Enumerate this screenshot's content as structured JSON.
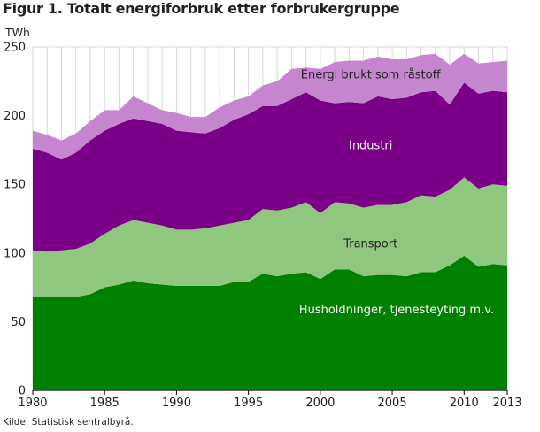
{
  "title": "Figur 1. Totalt energiforbruk etter forbrukergruppe",
  "source": "Kilde: Statistisk sentralbyrå.",
  "chart_data": {
    "type": "area",
    "stacked": true,
    "title": "Figur 1. Totalt energiforbruk etter forbrukergruppe",
    "ylabel": "TWh",
    "xlabel": "",
    "ylim": [
      0,
      250
    ],
    "xlim": [
      1980,
      2013
    ],
    "yticks": [
      0,
      50,
      100,
      150,
      200,
      250
    ],
    "xticks": [
      1980,
      1985,
      1990,
      1995,
      2000,
      2005,
      2010,
      2013
    ],
    "grid": "vertical",
    "x": [
      1980,
      1981,
      1982,
      1983,
      1984,
      1985,
      1986,
      1987,
      1988,
      1989,
      1990,
      1991,
      1992,
      1993,
      1994,
      1995,
      1996,
      1997,
      1998,
      1999,
      2000,
      2001,
      2002,
      2003,
      2004,
      2005,
      2006,
      2007,
      2008,
      2009,
      2010,
      2011,
      2012,
      2013
    ],
    "series": [
      {
        "name": "Husholdninger, tjenesteyting m.v.",
        "color": "#008000",
        "values": [
          68,
          68,
          68,
          68,
          70,
          75,
          77,
          80,
          78,
          77,
          76,
          76,
          76,
          76,
          79,
          79,
          85,
          83,
          85,
          86,
          81,
          88,
          88,
          83,
          84,
          84,
          83,
          86,
          86,
          91,
          98,
          90,
          92,
          91
        ]
      },
      {
        "name": "Transport",
        "color": "#90c77f",
        "values": [
          34,
          33,
          34,
          35,
          37,
          39,
          43,
          44,
          44,
          43,
          41,
          41,
          42,
          44,
          43,
          45,
          47,
          48,
          48,
          51,
          48,
          49,
          48,
          50,
          51,
          51,
          54,
          56,
          55,
          55,
          57,
          57,
          58,
          58
        ]
      },
      {
        "name": "Industri",
        "color": "#7a0087",
        "values": [
          74,
          72,
          66,
          70,
          75,
          75,
          74,
          74,
          74,
          74,
          72,
          71,
          69,
          71,
          75,
          77,
          75,
          76,
          79,
          80,
          82,
          72,
          74,
          76,
          79,
          77,
          76,
          75,
          77,
          62,
          69,
          69,
          68,
          68
        ]
      },
      {
        "name": "Energi brukt som råstoff",
        "color": "#c586cf",
        "values": [
          13,
          13,
          14,
          14,
          14,
          15,
          10,
          16,
          13,
          10,
          13,
          11,
          12,
          15,
          14,
          13,
          15,
          18,
          22,
          18,
          23,
          30,
          30,
          31,
          29,
          29,
          28,
          27,
          27,
          29,
          21,
          22,
          21,
          23
        ]
      }
    ],
    "annotations": [
      {
        "text": "Energi brukt som råstoff",
        "series": "Energi brukt som råstoff"
      },
      {
        "text": "Industri",
        "series": "Industri"
      },
      {
        "text": "Transport",
        "series": "Transport"
      },
      {
        "text": "Husholdninger, tjenesteyting m.v.",
        "series": "Husholdninger, tjenesteyting m.v."
      }
    ]
  }
}
